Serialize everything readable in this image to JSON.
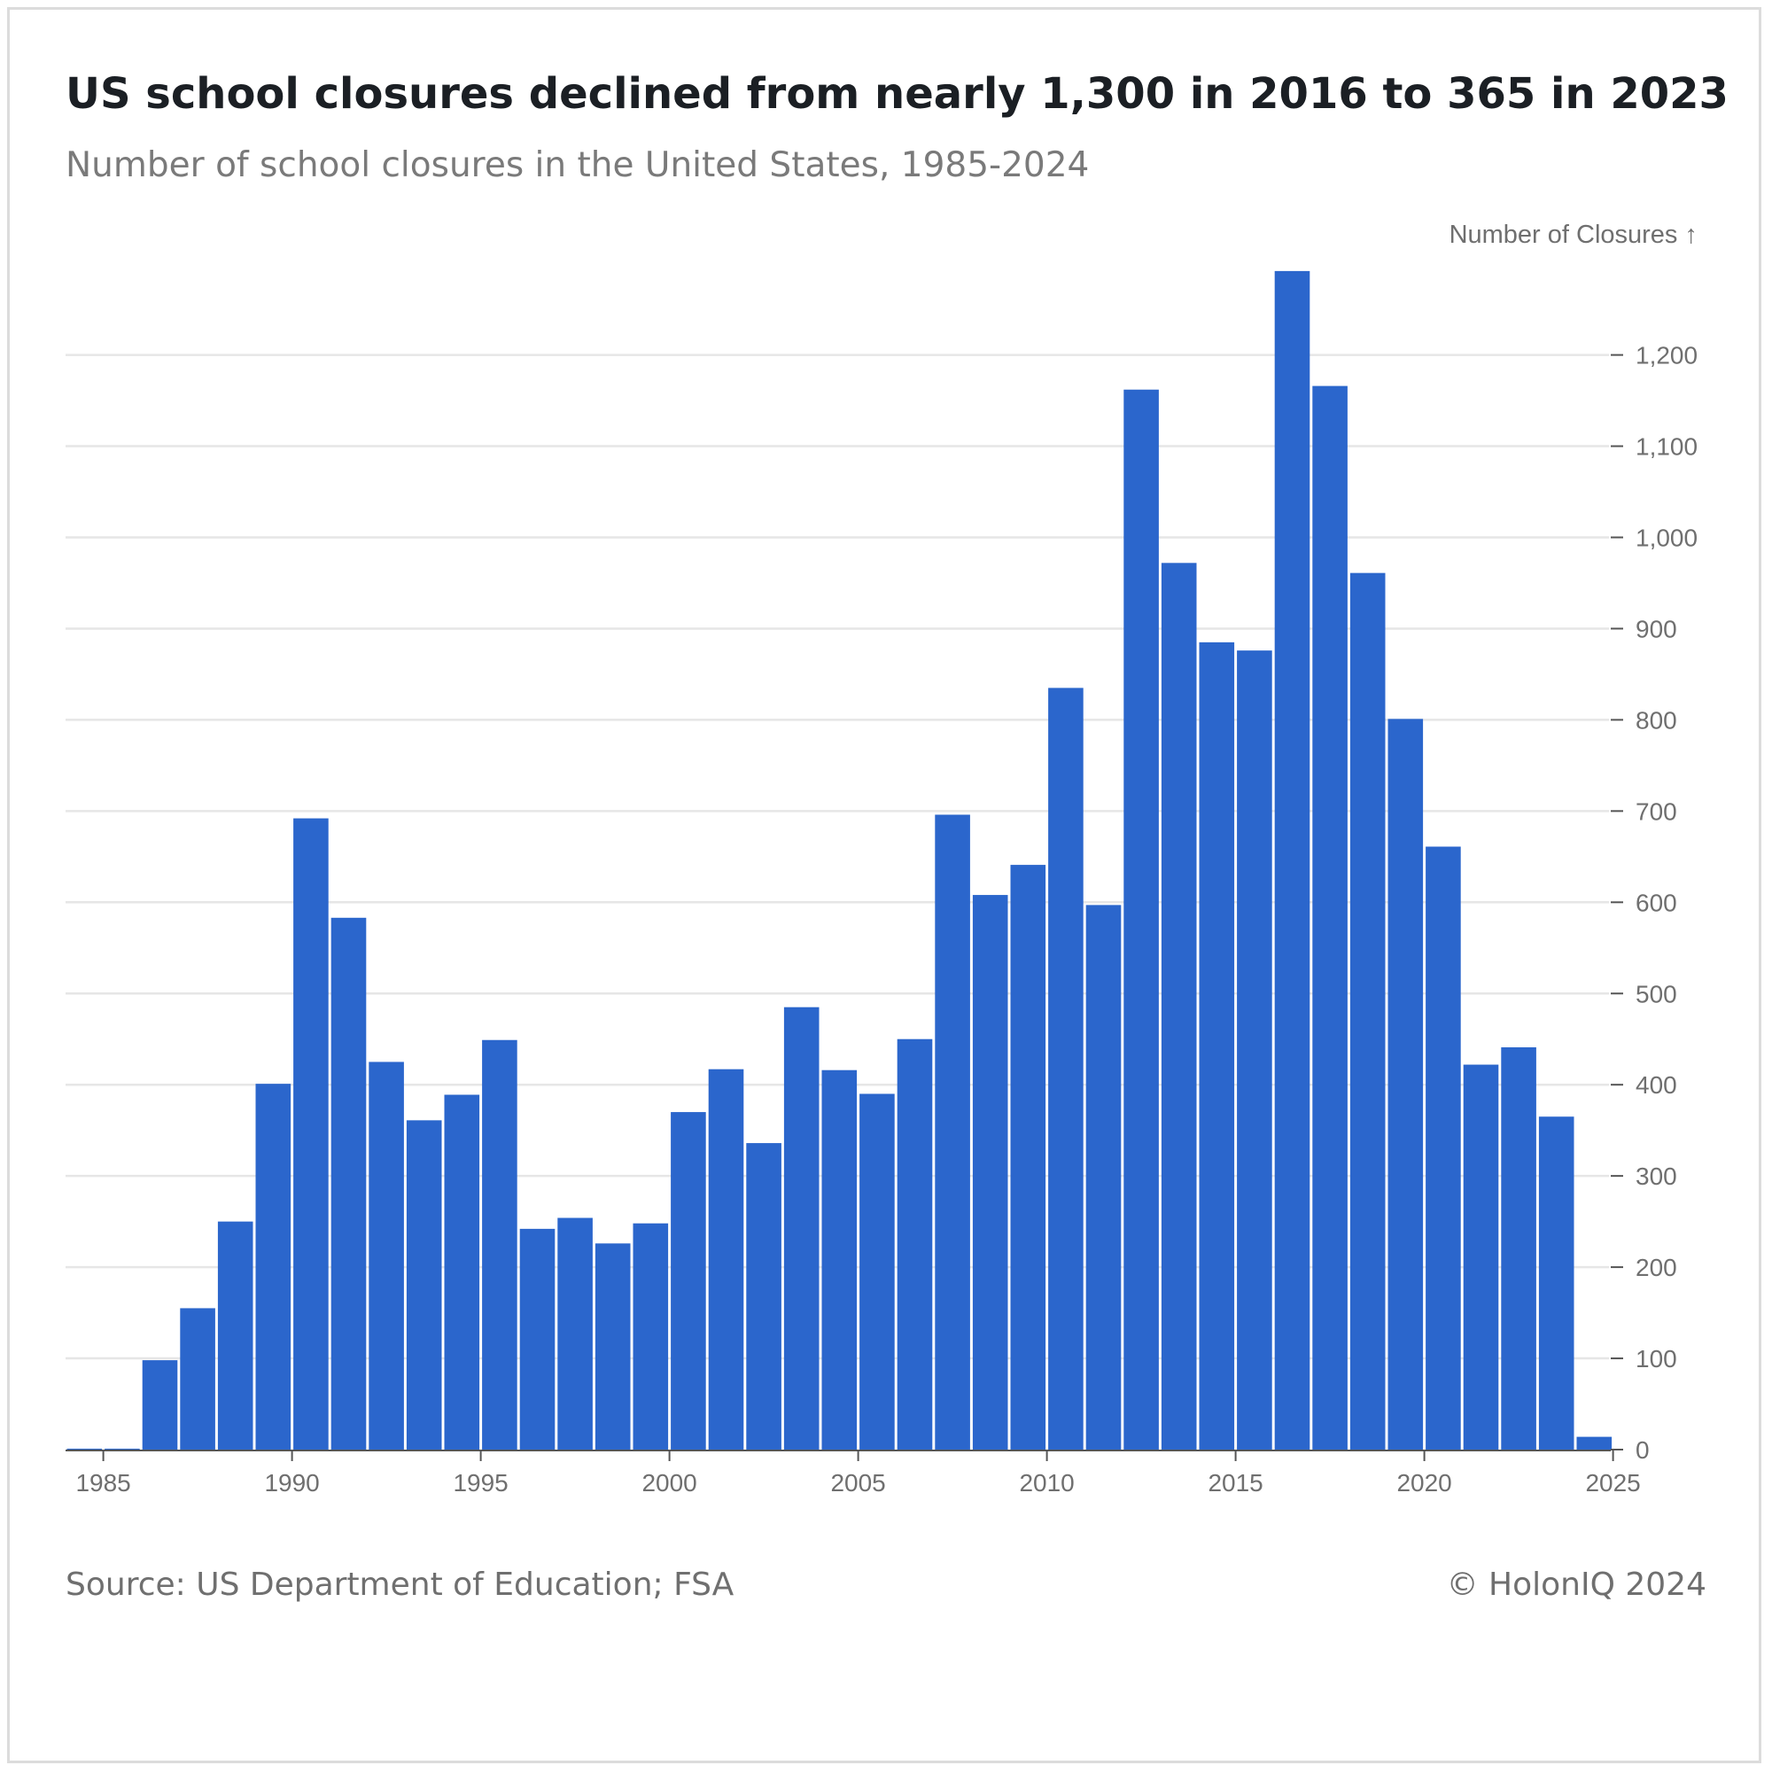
{
  "header": {
    "title": "US school closures declined from nearly 1,300 in 2016 to 365 in 2023",
    "subtitle": "Number of school closures in the United States, 1985-2024"
  },
  "footer": {
    "source": "Source: US Department of Education; FSA",
    "credit": "© HolonIQ 2024"
  },
  "colors": {
    "bar": "#2b66cc",
    "grid": "#e6e6e6",
    "axis": "#555555",
    "text": "#6f6f6f"
  },
  "chart_data": {
    "type": "bar",
    "title": "US school closures declined from nearly 1,300 in 2016 to 365 in 2023",
    "subtitle": "Number of school closures in the United States, 1985-2024",
    "ylabel": "Number of Closures ↑",
    "xlabel": "",
    "y_axis_position": "right",
    "grid": true,
    "ylim": [
      0,
      1300
    ],
    "xlim": [
      1984,
      2025
    ],
    "y_ticks": [
      0,
      100,
      200,
      300,
      400,
      500,
      600,
      700,
      800,
      900,
      1000,
      1100,
      1200
    ],
    "y_tick_labels": [
      "0",
      "100",
      "200",
      "300",
      "400",
      "500",
      "600",
      "700",
      "800",
      "900",
      "1,000",
      "1,100",
      "1,200"
    ],
    "x_ticks": [
      1985,
      1990,
      1995,
      2000,
      2005,
      2010,
      2015,
      2020,
      2025
    ],
    "x_tick_labels": [
      "1985",
      "1990",
      "1995",
      "2000",
      "2005",
      "2010",
      "2015",
      "2020",
      "2025"
    ],
    "categories": [
      1984,
      1985,
      1986,
      1987,
      1988,
      1989,
      1990,
      1991,
      1992,
      1993,
      1994,
      1995,
      1996,
      1997,
      1998,
      1999,
      2000,
      2001,
      2002,
      2003,
      2004,
      2005,
      2006,
      2007,
      2008,
      2009,
      2010,
      2011,
      2012,
      2013,
      2014,
      2015,
      2016,
      2017,
      2018,
      2019,
      2020,
      2021,
      2022,
      2023,
      2024
    ],
    "values": [
      1,
      1,
      98,
      155,
      250,
      401,
      692,
      583,
      425,
      361,
      389,
      449,
      242,
      254,
      226,
      248,
      370,
      417,
      336,
      485,
      416,
      390,
      450,
      696,
      608,
      641,
      835,
      597,
      1162,
      972,
      885,
      876,
      1292,
      1166,
      961,
      801,
      661,
      422,
      441,
      365,
      14
    ]
  }
}
